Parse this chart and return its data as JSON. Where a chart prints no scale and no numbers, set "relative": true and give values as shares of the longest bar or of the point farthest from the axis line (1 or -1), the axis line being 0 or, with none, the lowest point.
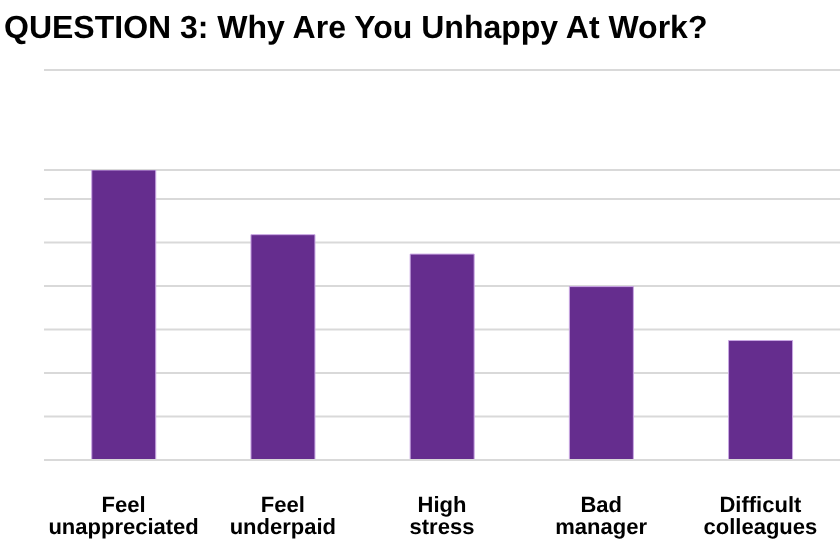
{
  "chart_data": {
    "type": "bar",
    "title": "QUESTION 3: Why Are You Unhappy At Work?",
    "categories": [
      "Feel unappreciated",
      "Feel underpaid",
      "High stress",
      "Bad manager",
      "Difficult colleagues"
    ],
    "values": [
      1,
      0.777,
      0.71,
      0.598,
      0.412
    ],
    "color": "#652d8e",
    "relative": true,
    "grid": "y"
  }
}
